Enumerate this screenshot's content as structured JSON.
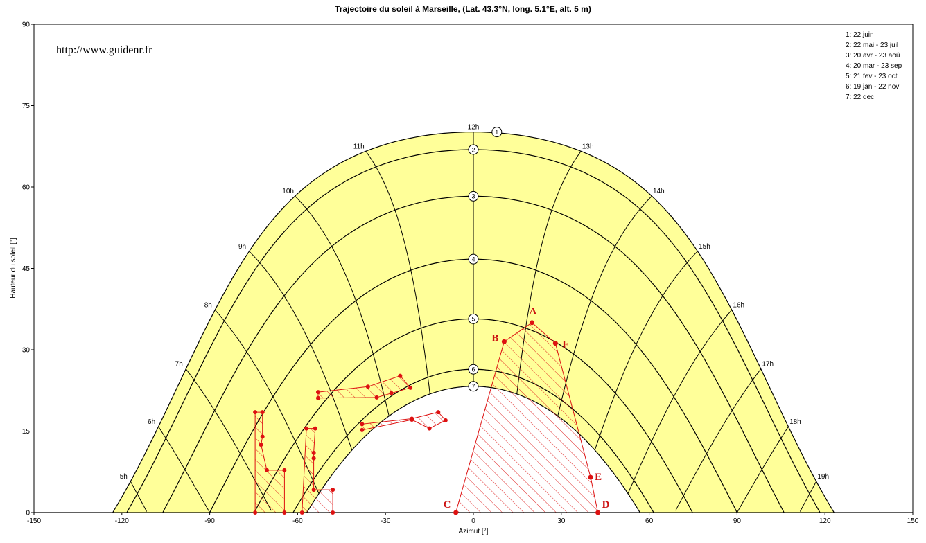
{
  "chart_data": {
    "type": "line",
    "title": "Trajectoire du soleil  à  Marseille, (Lat. 43.3°N, long. 5.1°E, alt. 5 m)",
    "watermark": "http://www.guidenr.fr",
    "xlabel": "Azimut [°]",
    "ylabel": "Hauteur du soleil [°]",
    "xlim": [
      -150,
      150
    ],
    "ylim": [
      0,
      90
    ],
    "xticks": [
      -150,
      -120,
      -90,
      -60,
      -30,
      0,
      30,
      60,
      90,
      120,
      150
    ],
    "yticks": [
      0,
      15,
      30,
      45,
      60,
      75,
      90
    ],
    "fill_color": "#ffff99",
    "mask_color": "#dd1111",
    "legend_position": "top-right",
    "legend": [
      "1: 22.juin",
      "2: 22 mai - 23 juil",
      "3: 20 avr - 23 aoû",
      "4: 20 mar - 23 sep",
      "5: 21 fev - 23 oct",
      "6: 19 jan - 22 nov",
      "7: 22 dec."
    ],
    "series": [
      {
        "name": "1",
        "declination": 23.44
      },
      {
        "name": "2",
        "declination": 20.2
      },
      {
        "name": "3",
        "declination": 11.6
      },
      {
        "name": "4",
        "declination": 0.0
      },
      {
        "name": "5",
        "declination": -11.0
      },
      {
        "name": "6",
        "declination": -20.3
      },
      {
        "name": "7",
        "declination": -23.44
      }
    ],
    "hours": [
      {
        "label": "5h",
        "hour_angle": -105
      },
      {
        "label": "6h",
        "hour_angle": -90
      },
      {
        "label": "7h",
        "hour_angle": -75
      },
      {
        "label": "8h",
        "hour_angle": -60
      },
      {
        "label": "9h",
        "hour_angle": -45
      },
      {
        "label": "10h",
        "hour_angle": -30
      },
      {
        "label": "11h",
        "hour_angle": -15
      },
      {
        "label": "12h",
        "hour_angle": 0
      },
      {
        "label": "13h",
        "hour_angle": 15
      },
      {
        "label": "14h",
        "hour_angle": 30
      },
      {
        "label": "15h",
        "hour_angle": 45
      },
      {
        "label": "16h",
        "hour_angle": 60
      },
      {
        "label": "17h",
        "hour_angle": 75
      },
      {
        "label": "18h",
        "hour_angle": 90
      },
      {
        "label": "19h",
        "hour_angle": 105
      }
    ],
    "mask_points": [
      {
        "label": "A",
        "x": 20,
        "y": 35
      },
      {
        "label": "B",
        "x": 10.5,
        "y": 31.5
      },
      {
        "label": "F",
        "x": 28,
        "y": 31.2
      },
      {
        "label": "C",
        "x": -6,
        "y": 0
      },
      {
        "label": "D",
        "x": 42.5,
        "y": 0
      },
      {
        "label": "E",
        "x": 40,
        "y": 6.5
      }
    ],
    "masks": [
      {
        "name": "mask-ABCDEF",
        "points": [
          [
            -6,
            0
          ],
          [
            10.5,
            31.5
          ],
          [
            20,
            35
          ],
          [
            28,
            31.2
          ],
          [
            40,
            6.5
          ],
          [
            42.5,
            0
          ]
        ]
      },
      {
        "name": "mask-tree-1",
        "points": [
          [
            -74.5,
            0
          ],
          [
            -74.5,
            18.5
          ],
          [
            -72,
            18.5
          ],
          [
            -72,
            14
          ],
          [
            -72.5,
            12.5
          ],
          [
            -70.5,
            7.8
          ],
          [
            -64.5,
            7.8
          ],
          [
            -64.5,
            0
          ]
        ]
      },
      {
        "name": "mask-tree-2",
        "points": [
          [
            -58.5,
            0
          ],
          [
            -57,
            15.5
          ],
          [
            -54,
            15.5
          ],
          [
            -54.5,
            11
          ],
          [
            -54.5,
            10
          ],
          [
            -54.5,
            4.2
          ],
          [
            -48,
            4.2
          ],
          [
            -48,
            0
          ]
        ]
      },
      {
        "name": "mask-building-1",
        "points": [
          [
            -53,
            22.2
          ],
          [
            -36,
            23.2
          ],
          [
            -25,
            25.2
          ],
          [
            -21.5,
            23
          ],
          [
            -28,
            22
          ],
          [
            -33,
            21.2
          ],
          [
            -53,
            21.1
          ]
        ]
      },
      {
        "name": "mask-building-2",
        "points": [
          [
            -38,
            15.2
          ],
          [
            -38,
            16.3
          ],
          [
            -21,
            17.3
          ],
          [
            -12,
            18.5
          ],
          [
            -9.5,
            17
          ],
          [
            -15,
            15.5
          ],
          [
            -21,
            17.1
          ]
        ]
      }
    ]
  }
}
